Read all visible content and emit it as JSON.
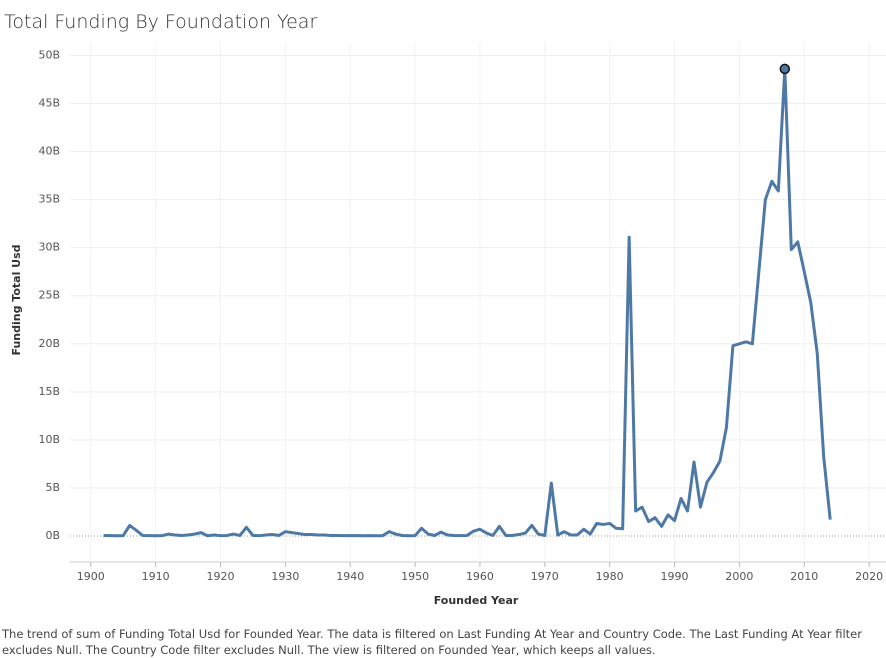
{
  "chart_data": {
    "type": "line",
    "title": "Total Funding By Foundation Year",
    "x_label": "Founded Year",
    "y_label": "Funding Total Usd",
    "caption": "The trend of sum of Funding Total Usd for Founded Year. The data is filtered on Last Funding At Year and Country Code. The Last Funding At Year filter excludes Null. The Country Code filter excludes Null. The view is filtered on Founded Year, which keeps all values.",
    "color": "#4e79a7",
    "grid": true,
    "x": [
      1902,
      1903,
      1904,
      1905,
      1906,
      1907,
      1908,
      1909,
      1910,
      1911,
      1912,
      1913,
      1914,
      1915,
      1916,
      1917,
      1918,
      1919,
      1920,
      1921,
      1922,
      1923,
      1924,
      1925,
      1926,
      1927,
      1928,
      1929,
      1930,
      1931,
      1932,
      1933,
      1934,
      1935,
      1936,
      1937,
      1938,
      1939,
      1940,
      1941,
      1942,
      1943,
      1944,
      1945,
      1946,
      1947,
      1948,
      1949,
      1950,
      1951,
      1952,
      1953,
      1954,
      1955,
      1956,
      1957,
      1958,
      1959,
      1960,
      1961,
      1962,
      1963,
      1964,
      1965,
      1966,
      1967,
      1968,
      1969,
      1970,
      1971,
      1972,
      1973,
      1974,
      1975,
      1976,
      1977,
      1978,
      1979,
      1980,
      1981,
      1982,
      1983,
      1984,
      1985,
      1986,
      1987,
      1988,
      1989,
      1990,
      1991,
      1992,
      1993,
      1994,
      1995,
      1996,
      1997,
      1998,
      1999,
      2000,
      2001,
      2002,
      2003,
      2004,
      2005,
      2006,
      2007,
      2008,
      2009,
      2010,
      2011,
      2012,
      2013,
      2014
    ],
    "values": [
      0.05,
      0.03,
      0.02,
      0.03,
      1.1,
      0.6,
      0.05,
      0.03,
      0.02,
      0.03,
      0.2,
      0.1,
      0.05,
      0.1,
      0.2,
      0.35,
      0.02,
      0.1,
      0.03,
      0.05,
      0.2,
      0.05,
      0.9,
      0.05,
      0.03,
      0.1,
      0.15,
      0.05,
      0.45,
      0.35,
      0.25,
      0.15,
      0.15,
      0.1,
      0.1,
      0.05,
      0.05,
      0.03,
      0.04,
      0.03,
      0.02,
      0.03,
      0.02,
      0.03,
      0.45,
      0.2,
      0.05,
      0.02,
      0.03,
      0.8,
      0.2,
      0.05,
      0.4,
      0.1,
      0.05,
      0.03,
      0.05,
      0.5,
      0.7,
      0.3,
      0.05,
      1.0,
      0.05,
      0.05,
      0.15,
      0.3,
      1.1,
      0.2,
      0.05,
      5.5,
      0.1,
      0.45,
      0.1,
      0.1,
      0.7,
      0.2,
      1.3,
      1.2,
      1.3,
      0.8,
      0.75,
      31.1,
      2.6,
      3.0,
      1.5,
      1.9,
      1.0,
      2.2,
      1.6,
      3.9,
      2.6,
      7.7,
      3.0,
      5.6,
      6.6,
      7.8,
      11.3,
      19.8,
      20.0,
      20.2,
      20.0,
      27.5,
      35.0,
      36.9,
      35.9,
      48.6,
      29.8,
      30.6,
      27.5,
      24.3,
      19.0,
      8.2,
      1.7
    ],
    "xlim": [
      1896.8,
      2022.6
    ],
    "xticks": [
      1900,
      1910,
      1920,
      1930,
      1940,
      1950,
      1960,
      1970,
      1980,
      1990,
      2000,
      2010,
      2020
    ],
    "ylim": [
      -2.5,
      51.4
    ],
    "yticks": [
      {
        "value": 0,
        "label": "0B"
      },
      {
        "value": 5,
        "label": "5B"
      },
      {
        "value": 10,
        "label": "10B"
      },
      {
        "value": 15,
        "label": "15B"
      },
      {
        "value": 20,
        "label": "20B"
      },
      {
        "value": 25,
        "label": "25B"
      },
      {
        "value": 30,
        "label": "30B"
      },
      {
        "value": 35,
        "label": "35B"
      },
      {
        "value": 40,
        "label": "40B"
      },
      {
        "value": 45,
        "label": "45B"
      },
      {
        "value": 50,
        "label": "50B"
      }
    ]
  }
}
